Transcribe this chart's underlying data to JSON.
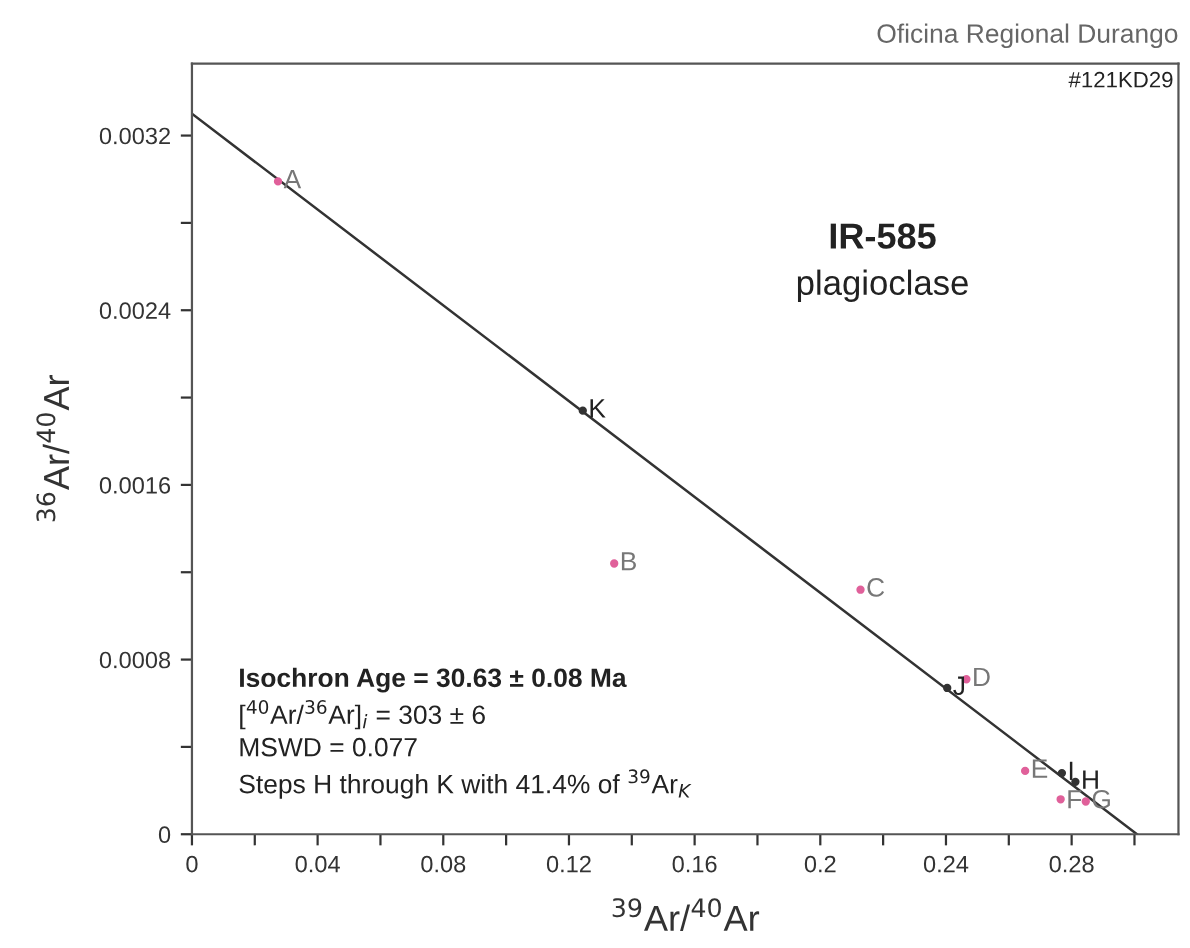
{
  "chart_data": {
    "type": "scatter",
    "title": "IR-585",
    "subtitle": "plagioclase",
    "xlabel": "$^{39}$Ar/$^{40}$Ar",
    "ylabel": "$^{36}$Ar/$^{40}$Ar",
    "xlim": [
      0,
      0.314
    ],
    "ylim": [
      0,
      0.00353
    ],
    "xticks": [
      0,
      {
        "value": 0.02,
        "label": null
      },
      0.04,
      {
        "value": 0.06,
        "label": null
      },
      0.08,
      {
        "value": 0.1,
        "label": null
      },
      0.12,
      {
        "value": 0.14,
        "label": null
      },
      0.16,
      {
        "value": 0.18,
        "label": null
      },
      0.2,
      {
        "value": 0.22,
        "label": null
      },
      0.24,
      {
        "value": 0.26,
        "label": null
      },
      0.28,
      {
        "value": 0.3,
        "label": null
      }
    ],
    "yticks": [
      0,
      {
        "value": 0.0004,
        "label": null
      },
      0.0008,
      {
        "value": 0.0012,
        "label": null
      },
      0.0016,
      {
        "value": 0.002,
        "label": null
      },
      0.0024,
      {
        "value": 0.0028,
        "label": null
      },
      0.0032
    ],
    "grid": false,
    "legend": false,
    "marker": "circle",
    "series": [
      {
        "color": "#e0609a",
        "x": [
          0.0274,
          0.1344,
          0.2128,
          0.2465,
          0.2652,
          0.2765,
          0.2845
        ],
        "values": [
          0.00299,
          0.00124,
          0.00112,
          0.00071,
          0.00029,
          0.00016,
          0.00015
        ]
      },
      {
        "color": "#333333",
        "x": [
          0.2812,
          0.2769,
          0.2404,
          0.1244
        ],
        "values": [
          0.00024,
          0.00028,
          0.00067,
          0.00194
        ]
      },
      {
        "type": "line",
        "color": "#333333",
        "marker": "none",
        "line_style": "solid",
        "x": [
          0,
          0.3008
        ],
        "values": [
          0.0033,
          0
        ]
      }
    ],
    "annotations": [
      "Oficina Regional Durango",
      "#121KD29",
      "Isochron Age = 30.63 ± 0.08 Ma",
      "[$^{40}$Ar/$^{36}$Ar]$_{i}$ = 303 ± 6",
      "MSWD = 0.077",
      "Steps H through K with 41.4% of $^{39}$Ar$_{K}$",
      {
        "text": "A",
        "x": 0.0274,
        "y": 0.00299
      },
      {
        "text": "B",
        "x": 0.1344,
        "y": 0.00124
      },
      {
        "text": "C",
        "x": 0.2128,
        "y": 0.00112
      },
      {
        "text": "D",
        "x": 0.2465,
        "y": 0.00071
      },
      {
        "text": "E",
        "x": 0.2652,
        "y": 0.00029
      },
      {
        "text": "F",
        "x": 0.2765,
        "y": 0.00015
      },
      {
        "text": "G",
        "x": 0.2845,
        "y": 0.00015
      },
      {
        "text": "H",
        "x": 0.2812,
        "y": 0.00024
      },
      {
        "text": "I",
        "x": 0.2769,
        "y": 0.00028
      },
      {
        "text": "J",
        "x": 0.2404,
        "y": 0.00067
      },
      {
        "text": "K",
        "x": 0.1244,
        "y": 0.00194
      }
    ]
  }
}
